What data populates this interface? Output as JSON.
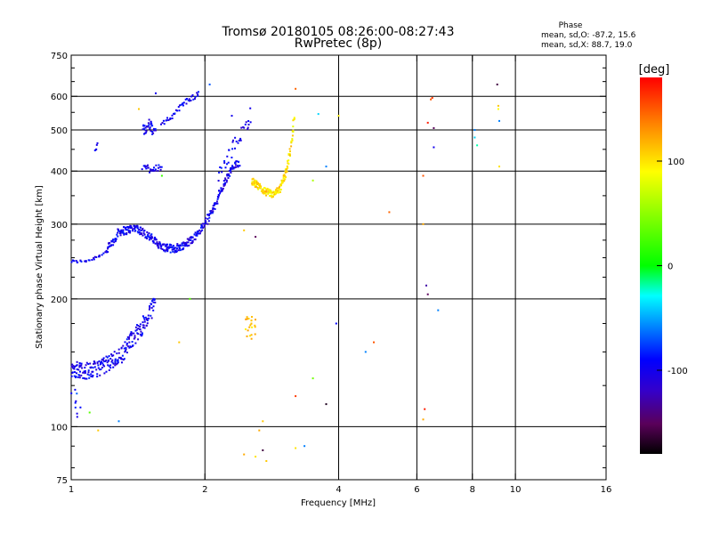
{
  "chart_data": {
    "type": "scatter",
    "title": "Tromsø 20180105 08:26:00-08:27:43",
    "subtitle": "RwPretec (8p)",
    "xlabel": "Frequency [MHz]",
    "ylabel": "Stationary phase Virtual Height [km]",
    "x_scale": "log",
    "y_scale": "log",
    "xlim": [
      1,
      16
    ],
    "ylim": [
      75,
      750
    ],
    "x_ticks": [
      1,
      2,
      4,
      6,
      8,
      10,
      16
    ],
    "x_tick_labels": [
      "1",
      "2",
      "4",
      "6",
      "8",
      "10",
      "16"
    ],
    "y_ticks": [
      75,
      100,
      200,
      300,
      400,
      500,
      600,
      750
    ],
    "y_tick_labels": [
      "75",
      "100",
      "200",
      "300",
      "400",
      "500",
      "600",
      "750"
    ],
    "y_minor_ticks": [
      80,
      90,
      125,
      150,
      175,
      225,
      250,
      275,
      350,
      450,
      550,
      650,
      700
    ],
    "grid_x": [
      2,
      4,
      6,
      8,
      10
    ],
    "grid_y": [
      100,
      200,
      300,
      400,
      500,
      600
    ],
    "annotation": {
      "heading": "Phase",
      "line1": "mean, sd,O: -87.2, 15.6",
      "line2": "mean, sd,X:  88.7, 19.0"
    },
    "colorbar": {
      "label": "[deg]",
      "range": [
        -180,
        180
      ],
      "ticks": [
        100,
        0,
        -100
      ],
      "tick_labels": [
        "100",
        "0",
        "-100"
      ]
    },
    "traces": [
      {
        "type": "curve",
        "phase": -100,
        "points": [
          [
            1.0,
            245
          ],
          [
            1.05,
            245
          ],
          [
            1.1,
            247
          ],
          [
            1.15,
            252
          ],
          [
            1.2,
            258
          ]
        ],
        "step": 0.008,
        "jitter": 0.008,
        "count": 1
      },
      {
        "type": "curve",
        "phase": -100,
        "points": [
          [
            1.2,
            260
          ],
          [
            1.25,
            275
          ],
          [
            1.28,
            288
          ],
          [
            1.33,
            290
          ],
          [
            1.4,
            295
          ],
          [
            1.5,
            280
          ],
          [
            1.6,
            265
          ],
          [
            1.7,
            262
          ],
          [
            1.8,
            268
          ],
          [
            1.9,
            280
          ],
          [
            2.0,
            300
          ],
          [
            2.1,
            330
          ],
          [
            2.2,
            370
          ],
          [
            2.3,
            405
          ],
          [
            2.4,
            420
          ]
        ],
        "step": 0.004,
        "jitter": 0.022,
        "count": 2
      },
      {
        "type": "curve",
        "phase": -100,
        "points": [
          [
            1.0,
            137
          ],
          [
            1.1,
            135
          ],
          [
            1.2,
            140
          ],
          [
            1.3,
            148
          ],
          [
            1.35,
            158
          ],
          [
            1.42,
            168
          ],
          [
            1.48,
            178
          ],
          [
            1.52,
            190
          ],
          [
            1.55,
            205
          ]
        ],
        "step": 0.004,
        "jitter": 0.045,
        "count": 2
      },
      {
        "type": "curve",
        "phase": -100,
        "points": [
          [
            1.13,
            445
          ],
          [
            1.15,
            470
          ]
        ],
        "step": 0.004,
        "jitter": 0.02,
        "count": 1
      },
      {
        "type": "curve",
        "phase": -100,
        "points": [
          [
            1.45,
            500
          ],
          [
            1.5,
            515
          ],
          [
            1.55,
            490
          ]
        ],
        "step": 0.004,
        "jitter": 0.03,
        "count": 2
      },
      {
        "type": "curve",
        "phase": -100,
        "points": [
          [
            1.45,
            410
          ],
          [
            1.5,
            405
          ],
          [
            1.6,
            410
          ]
        ],
        "step": 0.004,
        "jitter": 0.02,
        "count": 1
      },
      {
        "type": "curve",
        "phase": -100,
        "points": [
          [
            1.6,
            510
          ],
          [
            1.7,
            545
          ],
          [
            1.8,
            580
          ],
          [
            1.95,
            610
          ]
        ],
        "step": 0.005,
        "jitter": 0.015,
        "count": 1
      },
      {
        "type": "curve",
        "phase": -100,
        "points": [
          [
            2.15,
            390
          ],
          [
            2.3,
            450
          ],
          [
            2.45,
            500
          ],
          [
            2.55,
            550
          ]
        ],
        "step": 0.005,
        "jitter": 0.035,
        "count": 1
      },
      {
        "type": "curve",
        "phase": 100,
        "points": [
          [
            2.55,
            380
          ],
          [
            2.7,
            360
          ],
          [
            2.85,
            352
          ],
          [
            2.95,
            362
          ],
          [
            3.05,
            400
          ],
          [
            3.12,
            450
          ],
          [
            3.16,
            500
          ],
          [
            3.18,
            560
          ]
        ],
        "step": 0.003,
        "jitter": 0.02,
        "count": 2
      },
      {
        "type": "cloud",
        "phase": 110,
        "x": [
          2.45,
          2.6
        ],
        "y": [
          160,
          182
        ],
        "count": 22
      },
      {
        "type": "cloud",
        "phase": -85,
        "x": [
          1.0,
          1.05
        ],
        "y": [
          105,
          140
        ],
        "count": 12
      }
    ],
    "scatter_points": [
      {
        "x": 1.42,
        "y": 560,
        "phase": 110
      },
      {
        "x": 1.55,
        "y": 610,
        "phase": -100
      },
      {
        "x": 2.05,
        "y": 640,
        "phase": -70
      },
      {
        "x": 2.3,
        "y": 540,
        "phase": -100
      },
      {
        "x": 3.6,
        "y": 545,
        "phase": -40
      },
      {
        "x": 4.0,
        "y": 540,
        "phase": 95
      },
      {
        "x": 3.2,
        "y": 625,
        "phase": 145
      },
      {
        "x": 3.75,
        "y": 410,
        "phase": -60
      },
      {
        "x": 3.5,
        "y": 380,
        "phase": 60
      },
      {
        "x": 5.2,
        "y": 320,
        "phase": 145
      },
      {
        "x": 6.2,
        "y": 390,
        "phase": 150
      },
      {
        "x": 6.2,
        "y": 300,
        "phase": 120
      },
      {
        "x": 6.45,
        "y": 590,
        "phase": 150
      },
      {
        "x": 6.5,
        "y": 595,
        "phase": 160
      },
      {
        "x": 6.35,
        "y": 520,
        "phase": 170
      },
      {
        "x": 6.55,
        "y": 505,
        "phase": -150
      },
      {
        "x": 6.55,
        "y": 455,
        "phase": -100
      },
      {
        "x": 6.3,
        "y": 215,
        "phase": -130
      },
      {
        "x": 6.35,
        "y": 205,
        "phase": -150
      },
      {
        "x": 6.7,
        "y": 188,
        "phase": -60
      },
      {
        "x": 8.1,
        "y": 500,
        "phase": -60
      },
      {
        "x": 8.1,
        "y": 480,
        "phase": -40
      },
      {
        "x": 8.2,
        "y": 460,
        "phase": -20
      },
      {
        "x": 9.1,
        "y": 640,
        "phase": -160
      },
      {
        "x": 9.15,
        "y": 570,
        "phase": 110
      },
      {
        "x": 9.15,
        "y": 560,
        "phase": 90
      },
      {
        "x": 9.2,
        "y": 525,
        "phase": -60
      },
      {
        "x": 9.2,
        "y": 410,
        "phase": 100
      },
      {
        "x": 1.85,
        "y": 200,
        "phase": 30
      },
      {
        "x": 1.75,
        "y": 158,
        "phase": 110
      },
      {
        "x": 2.45,
        "y": 290,
        "phase": 110
      },
      {
        "x": 2.6,
        "y": 280,
        "phase": -150
      },
      {
        "x": 3.95,
        "y": 175,
        "phase": -90
      },
      {
        "x": 4.8,
        "y": 158,
        "phase": 150
      },
      {
        "x": 4.6,
        "y": 150,
        "phase": -60
      },
      {
        "x": 3.5,
        "y": 130,
        "phase": 40
      },
      {
        "x": 3.2,
        "y": 118,
        "phase": 160
      },
      {
        "x": 3.75,
        "y": 113,
        "phase": -170
      },
      {
        "x": 6.25,
        "y": 110,
        "phase": 170
      },
      {
        "x": 6.2,
        "y": 104,
        "phase": 120
      },
      {
        "x": 1.1,
        "y": 108,
        "phase": 30
      },
      {
        "x": 1.28,
        "y": 103,
        "phase": -60
      },
      {
        "x": 1.15,
        "y": 98,
        "phase": 110
      },
      {
        "x": 2.7,
        "y": 103,
        "phase": 110
      },
      {
        "x": 2.65,
        "y": 98,
        "phase": 120
      },
      {
        "x": 2.6,
        "y": 85,
        "phase": 100
      },
      {
        "x": 2.7,
        "y": 88,
        "phase": -160
      },
      {
        "x": 2.75,
        "y": 83,
        "phase": 110
      },
      {
        "x": 2.45,
        "y": 86,
        "phase": 120
      },
      {
        "x": 3.2,
        "y": 89,
        "phase": 100
      },
      {
        "x": 3.35,
        "y": 90,
        "phase": -60
      },
      {
        "x": 1.6,
        "y": 390,
        "phase": 20
      }
    ]
  }
}
